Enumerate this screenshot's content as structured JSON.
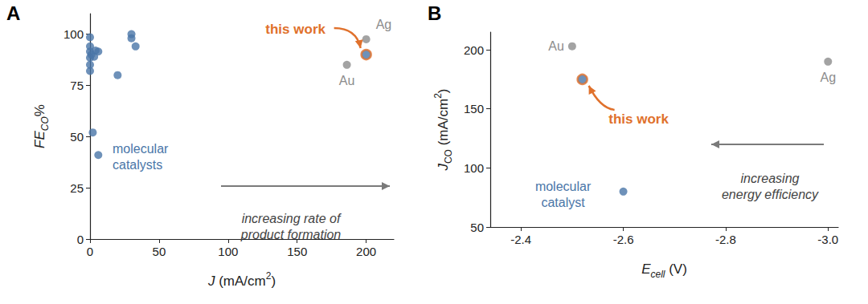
{
  "chart_data": [
    {
      "type": "scatter",
      "title": "A",
      "x_label": [
        {
          "text": "J",
          "italic": true
        },
        {
          "text": " (mA/cm"
        },
        {
          "text": "2",
          "sup": true
        },
        {
          "text": ")"
        }
      ],
      "y_label": [
        {
          "text": "FE",
          "italic": true
        },
        {
          "text": "CO",
          "italic": true,
          "sub": true
        },
        {
          "text": "%"
        }
      ],
      "xlim": [
        0,
        220
      ],
      "xticks": [
        0,
        50,
        100,
        150,
        200
      ],
      "ylim": [
        0,
        110
      ],
      "yticks": [
        0,
        25,
        50,
        75,
        100
      ],
      "grid": false,
      "series": [
        {
          "name": "molecular\ncatalysts",
          "color": "#4a76a8",
          "marker": "circle",
          "x": [
            0,
            0,
            0,
            0,
            0,
            0,
            1,
            3,
            4,
            6,
            2,
            6,
            20,
            30,
            30,
            33
          ],
          "values": [
            98.5,
            94,
            91.5,
            88.5,
            85,
            82,
            90,
            89,
            92,
            91.5,
            52,
            41,
            80,
            100,
            98,
            94
          ]
        },
        {
          "name": "Au",
          "color": "#8c8c8c",
          "marker": "circle",
          "x": [
            186
          ],
          "values": [
            85
          ]
        },
        {
          "name": "Ag",
          "color": "#8c8c8c",
          "marker": "circle",
          "x": [
            200
          ],
          "values": [
            97.5
          ]
        },
        {
          "name": "this work",
          "color": "#4a76a8",
          "marker": "circle",
          "x": [
            200
          ],
          "values": [
            90
          ]
        }
      ],
      "annotations": [
        "increasing rate of\nproduct formation"
      ]
    },
    {
      "type": "scatter",
      "title": "B",
      "x_label": [
        {
          "text": "E",
          "italic": true
        },
        {
          "text": "cell",
          "italic": true,
          "sub": true
        },
        {
          "text": " (V)"
        }
      ],
      "y_label": [
        {
          "text": "J",
          "italic": true
        },
        {
          "text": "CO",
          "sub": true
        },
        {
          "text": " (mA/cm"
        },
        {
          "text": "2",
          "sup": true
        },
        {
          "text": ")"
        }
      ],
      "xlim": [
        -2.34,
        -3.02
      ],
      "xticks": [
        -2.4,
        -2.6,
        -2.8,
        {
          "value": -3,
          "label": "-3.0"
        }
      ],
      "ylim": [
        50,
        215
      ],
      "yticks": [
        50,
        100,
        150,
        200
      ],
      "grid": false,
      "series": [
        {
          "name": "molecular\ncatalyst",
          "color": "#4a76a8",
          "marker": "circle",
          "x": [
            -2.6
          ],
          "values": [
            80
          ]
        },
        {
          "name": "Au",
          "color": "#8c8c8c",
          "marker": "circle",
          "x": [
            -2.5
          ],
          "values": [
            203
          ]
        },
        {
          "name": "Ag",
          "color": "#8c8c8c",
          "marker": "circle",
          "x": [
            -3
          ],
          "values": [
            190
          ]
        },
        {
          "name": "this work",
          "color": "#4a76a8",
          "marker": "circle",
          "x": [
            -2.52
          ],
          "values": [
            175
          ]
        }
      ],
      "annotations": [
        "increasing\nenergy efficiency"
      ]
    }
  ]
}
